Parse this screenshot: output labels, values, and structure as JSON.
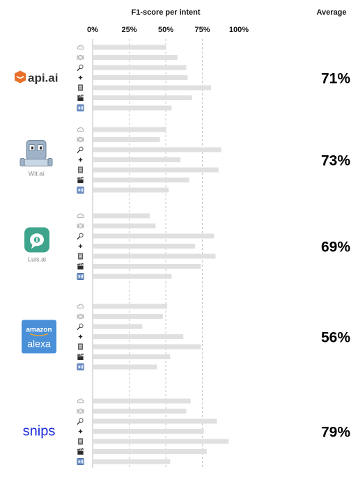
{
  "chart_data": {
    "type": "bar",
    "orientation": "horizontal",
    "title": "F1-score per intent",
    "average_header": "Average",
    "xlim": [
      0,
      100
    ],
    "x_ticks": [
      0,
      25,
      50,
      75,
      100
    ],
    "x_tick_labels": [
      "0%",
      "25%",
      "50%",
      "75%",
      "100%"
    ],
    "grid": "vertical dashed at 25%, 50%, 75%",
    "intent_icons": [
      "cloud-icon",
      "plate-icon",
      "search-icon",
      "plus-icon",
      "book-icon",
      "clapperboard-icon",
      "play-pause-icon"
    ],
    "bar_color": "#e0e0e0",
    "groups": [
      {
        "logo": "api-ai-logo",
        "logo_text": "api.ai",
        "logo_color": "#e8702a",
        "caption": "",
        "values": [
          50,
          58,
          64,
          65,
          81,
          68,
          54
        ],
        "average": "71%"
      },
      {
        "logo": "wit-ai-logo",
        "logo_text": "",
        "logo_color": "#9fb3c8",
        "caption": "Wit.ai",
        "values": [
          50,
          46,
          88,
          60,
          86,
          66,
          52
        ],
        "average": "73%"
      },
      {
        "logo": "luis-ai-logo",
        "logo_text": "",
        "logo_color": "#3ea58c",
        "caption": "Luis.ai",
        "values": [
          39,
          43,
          83,
          70,
          84,
          74,
          54
        ],
        "average": "69%"
      },
      {
        "logo": "amazon-alexa-logo",
        "logo_text": "amazon",
        "logo_subtext": "alexa",
        "logo_color": "#4a90d9",
        "caption": "",
        "values": [
          51,
          48,
          34,
          62,
          74,
          53,
          44
        ],
        "average": "56%"
      },
      {
        "logo": "snips-logo",
        "logo_text": "snips",
        "logo_color": "#1a2ad8",
        "caption": "",
        "values": [
          67,
          64,
          85,
          76,
          93,
          78,
          53
        ],
        "average": "79%"
      }
    ]
  }
}
